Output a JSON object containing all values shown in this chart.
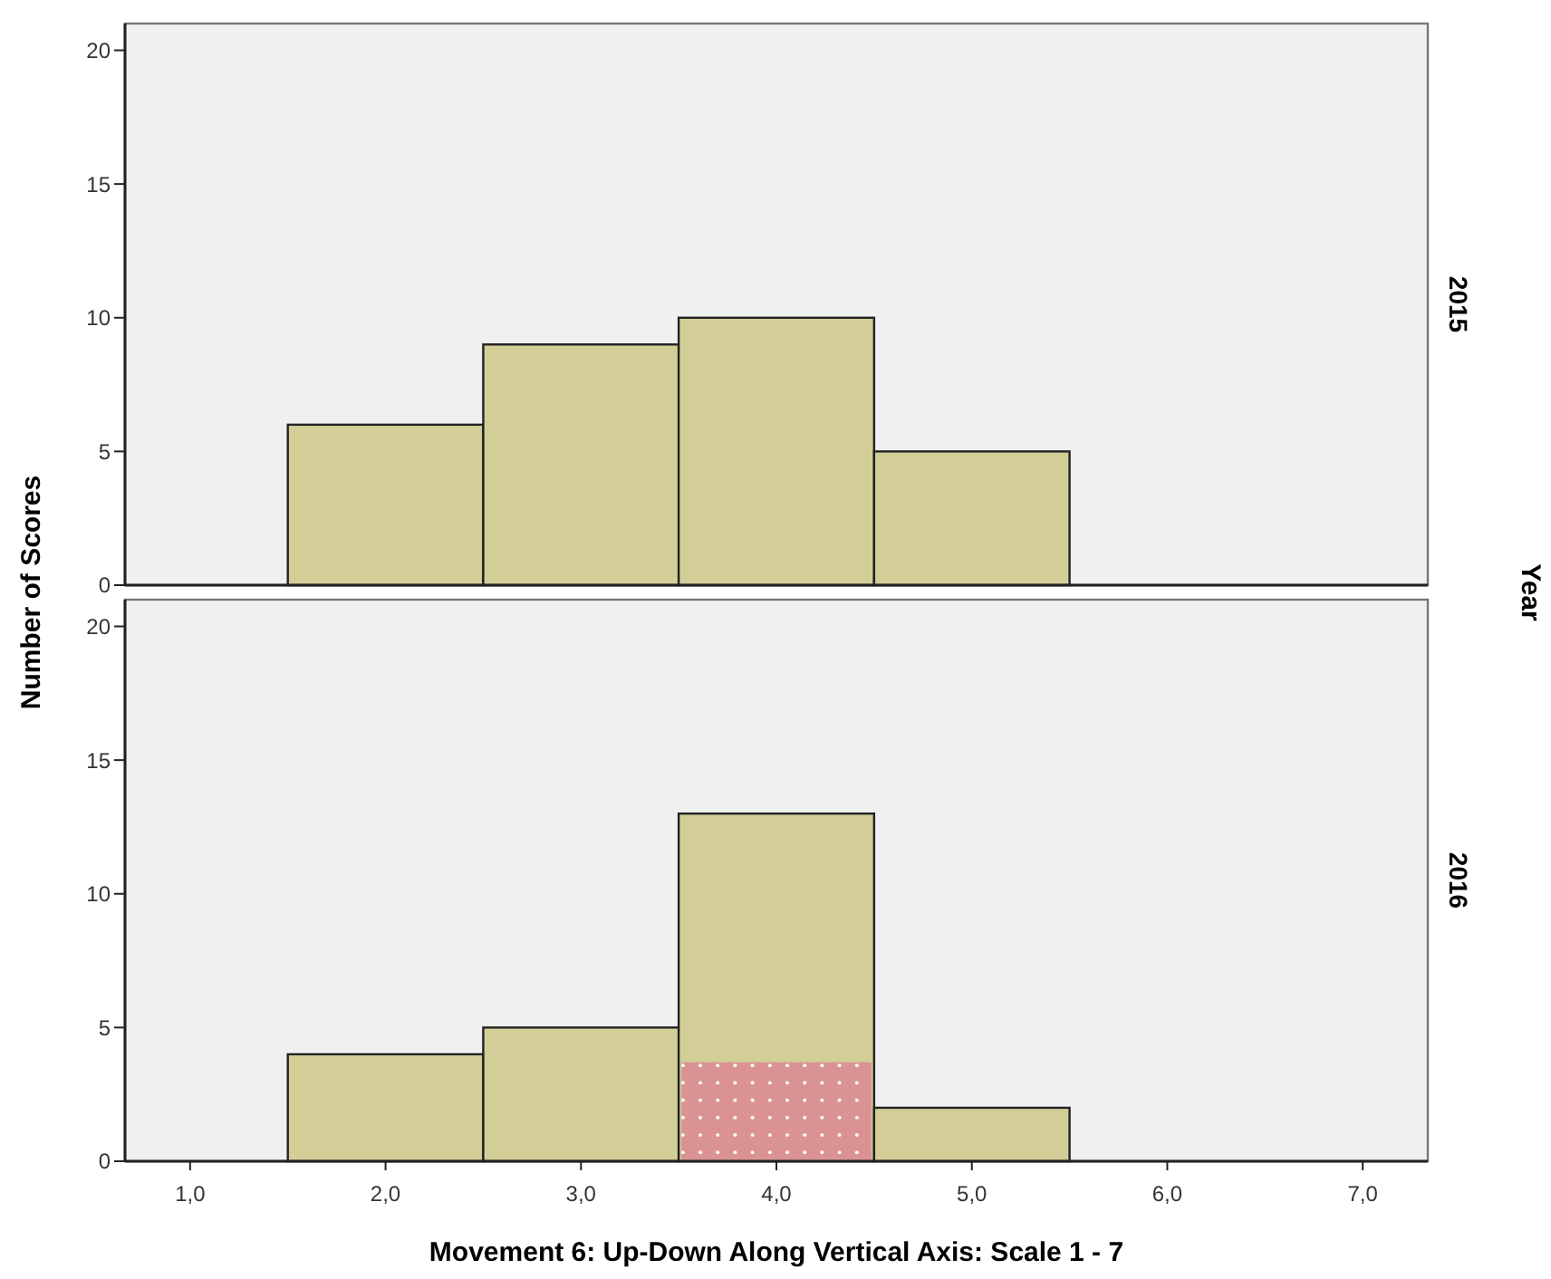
{
  "chart_data": [
    {
      "type": "histogram",
      "y2label": "2015",
      "ylabel": "Number of Scores",
      "annotations": [
        "Year"
      ],
      "bins": [
        1.5,
        2.5,
        3.5,
        4.5,
        5.5
      ],
      "series": [
        {
          "color": "#d3ce97",
          "values": [
            6,
            9,
            10,
            5
          ]
        }
      ],
      "xlim": [
        0.667,
        7.333
      ],
      "ylim": [
        0,
        21
      ],
      "yticks": [
        0,
        5,
        10,
        15,
        20
      ],
      "tick_labels": "y"
    },
    {
      "type": "histogram",
      "y2label": "2016",
      "xlabel": "Movement 6: Up-Down Along Vertical Axis: Scale 1 - 7",
      "bins": [
        1.5,
        2.5,
        3.5,
        4.5,
        5.5
      ],
      "series": [
        {
          "color": "#d3ce97",
          "values": [
            4,
            5,
            13,
            2
          ]
        },
        {
          "color": "#db9292",
          "values": [
            null,
            null,
            3.7,
            null
          ]
        }
      ],
      "xlim": [
        0.667,
        7.333
      ],
      "xticks": [
        {
          "value": 1,
          "label": "1,0"
        },
        {
          "value": 2,
          "label": "2,0"
        },
        {
          "value": 3,
          "label": "3,0"
        },
        {
          "value": 4,
          "label": "4,0"
        },
        {
          "value": 5,
          "label": "5,0"
        },
        {
          "value": 6,
          "label": "6,0"
        },
        {
          "value": 7,
          "label": "7,0"
        }
      ],
      "ylim": [
        0,
        21
      ],
      "yticks": [
        0,
        5,
        10,
        15,
        20
      ]
    }
  ]
}
